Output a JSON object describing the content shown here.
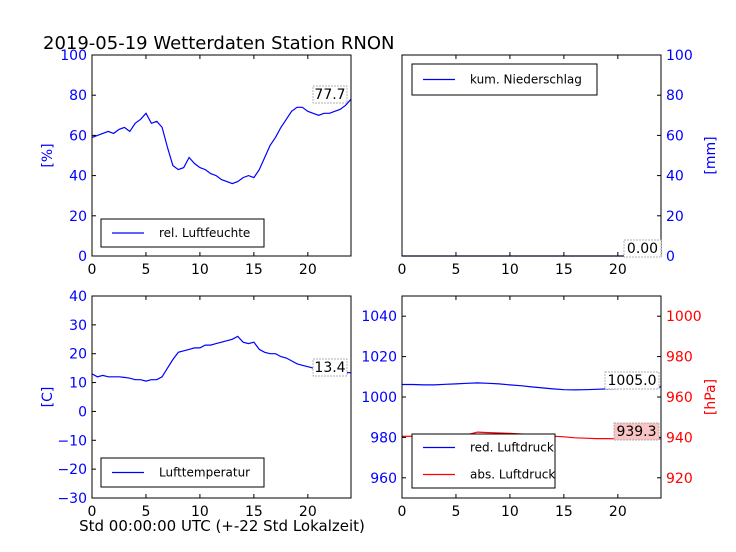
{
  "title": "2019-05-19 Wetterdaten Station RNON",
  "footer_xlabel": "Std 00:00:00 UTC (+-22 Std Lokalzeit)",
  "colors": {
    "blue": "#0000ff",
    "red": "#ff0000",
    "black": "#000000"
  },
  "chart_data": [
    {
      "id": "humidity",
      "type": "line",
      "xlim": [
        0,
        24
      ],
      "ylim": [
        0,
        100
      ],
      "xticks": [
        0,
        5,
        10,
        15,
        20
      ],
      "yticks": [
        0,
        20,
        40,
        60,
        80,
        100
      ],
      "ylabel": "[%]",
      "ylabel_side": "left",
      "axis_color": "#0000ff",
      "legend_placement": "lower-left",
      "annotation": "77.7",
      "series": [
        {
          "name": "rel. Luftfeuchte",
          "color": "#0000ff",
          "x": [
            0,
            0.5,
            1,
            1.5,
            2,
            2.5,
            3,
            3.5,
            4,
            4.5,
            5,
            5.5,
            6,
            6.5,
            7,
            7.5,
            8,
            8.5,
            9,
            9.5,
            10,
            10.5,
            11,
            11.5,
            12,
            12.5,
            13,
            13.5,
            14,
            14.5,
            15,
            15.5,
            16,
            16.5,
            17,
            17.5,
            18,
            18.5,
            19,
            19.5,
            20,
            20.5,
            21,
            21.5,
            22,
            22.5,
            23,
            23.5,
            24
          ],
          "y": [
            59,
            60,
            61,
            62,
            61,
            63,
            64,
            62,
            66,
            68,
            71,
            66,
            67,
            64,
            54,
            45,
            43,
            44,
            49,
            46,
            44,
            43,
            41,
            40,
            38,
            37,
            36,
            37,
            39,
            40,
            39,
            43,
            49,
            55,
            59,
            64,
            68,
            72,
            74,
            74,
            72,
            71,
            70,
            71,
            71,
            72,
            73,
            75,
            78
          ]
        }
      ]
    },
    {
      "id": "precipitation",
      "type": "line",
      "xlim": [
        0,
        24
      ],
      "ylim": [
        0,
        100
      ],
      "xticks": [
        0,
        5,
        10,
        15,
        20
      ],
      "yticks": [
        0,
        20,
        40,
        60,
        80,
        100
      ],
      "ylabel": "[mm]",
      "ylabel_side": "right",
      "axis_color": "#0000ff",
      "legend_placement": "upper-left",
      "annotation": "0.00",
      "series": [
        {
          "name": "kum. Niederschlag",
          "color": "#0000ff",
          "x": [
            0,
            24
          ],
          "y": [
            0,
            0
          ]
        }
      ]
    },
    {
      "id": "temperature",
      "type": "line",
      "xlim": [
        0,
        24
      ],
      "ylim": [
        -30,
        40
      ],
      "xticks": [
        0,
        5,
        10,
        15,
        20
      ],
      "yticks": [
        -30,
        -20,
        -10,
        0,
        10,
        20,
        30,
        40
      ],
      "ylabel": "[C]",
      "ylabel_side": "left",
      "axis_color": "#0000ff",
      "legend_placement": "lower-left",
      "annotation": "13.4",
      "series": [
        {
          "name": "Lufttemperatur",
          "color": "#0000ff",
          "x": [
            0,
            0.5,
            1,
            1.5,
            2,
            2.5,
            3,
            3.5,
            4,
            4.5,
            5,
            5.5,
            6,
            6.5,
            7,
            7.5,
            8,
            8.5,
            9,
            9.5,
            10,
            10.5,
            11,
            11.5,
            12,
            12.5,
            13,
            13.5,
            14,
            14.5,
            15,
            15.5,
            16,
            16.5,
            17,
            17.5,
            18,
            18.5,
            19,
            19.5,
            20,
            20.5,
            21,
            21.5,
            22,
            22.5,
            23,
            23.5,
            24
          ],
          "y": [
            13,
            12,
            12.5,
            12,
            12,
            12,
            11.8,
            11.5,
            11,
            11,
            10.5,
            11,
            11,
            12,
            15,
            18,
            20.5,
            21,
            21.5,
            22,
            22,
            23,
            23,
            23.5,
            24,
            24.5,
            25,
            26,
            24,
            23.5,
            24,
            21.5,
            20.5,
            20,
            20,
            19,
            18.5,
            17.5,
            16.5,
            16,
            15.5,
            15,
            14.5,
            14.5,
            14,
            14,
            13.5,
            13.5,
            13.4
          ]
        }
      ]
    },
    {
      "id": "pressure",
      "type": "line",
      "xlim": [
        0,
        24
      ],
      "ylim": [
        950,
        1050
      ],
      "xticks": [
        0,
        5,
        10,
        15,
        20
      ],
      "yticks": [
        960,
        980,
        1000,
        1020,
        1040
      ],
      "axis_color": "#0000ff",
      "ylim_right": [
        910,
        1010
      ],
      "yticks_right": [
        920,
        940,
        960,
        980,
        1000
      ],
      "ylabel_right": "[hPa]",
      "axis_color_right": "#ff0000",
      "legend_placement": "lower-left",
      "annotations": [
        "1005.0",
        "939.3"
      ],
      "series": [
        {
          "name": "red. Luftdruck",
          "color": "#0000ff",
          "axis": "left",
          "x": [
            0,
            1,
            2,
            3,
            4,
            5,
            6,
            7,
            8,
            9,
            10,
            11,
            12,
            13,
            14,
            15,
            16,
            17,
            18,
            19,
            20,
            21,
            22,
            23,
            24
          ],
          "y": [
            1006.2,
            1006.2,
            1006,
            1006,
            1006.3,
            1006.5,
            1006.8,
            1007,
            1006.8,
            1006.5,
            1006,
            1005.6,
            1005,
            1004.5,
            1004,
            1003.6,
            1003.5,
            1003.6,
            1003.8,
            1004,
            1004.2,
            1004.4,
            1004.6,
            1004.8,
            1005
          ]
        },
        {
          "name": "abs. Luftdruck",
          "color": "#ff0000",
          "axis": "right",
          "x": [
            0,
            1,
            2,
            3,
            4,
            5,
            6,
            7,
            8,
            9,
            10,
            11,
            12,
            13,
            14,
            15,
            16,
            17,
            18,
            19,
            20,
            21,
            22,
            23,
            24
          ],
          "y": [
            940.5,
            940.6,
            940.4,
            940.3,
            940.5,
            940.8,
            941.3,
            942.6,
            942.4,
            942.2,
            942,
            941.7,
            941.5,
            941.2,
            940.6,
            940.3,
            939.8,
            939.6,
            939.4,
            939.4,
            939.3,
            939.3,
            939.3,
            939.3,
            939.3
          ]
        }
      ]
    }
  ]
}
